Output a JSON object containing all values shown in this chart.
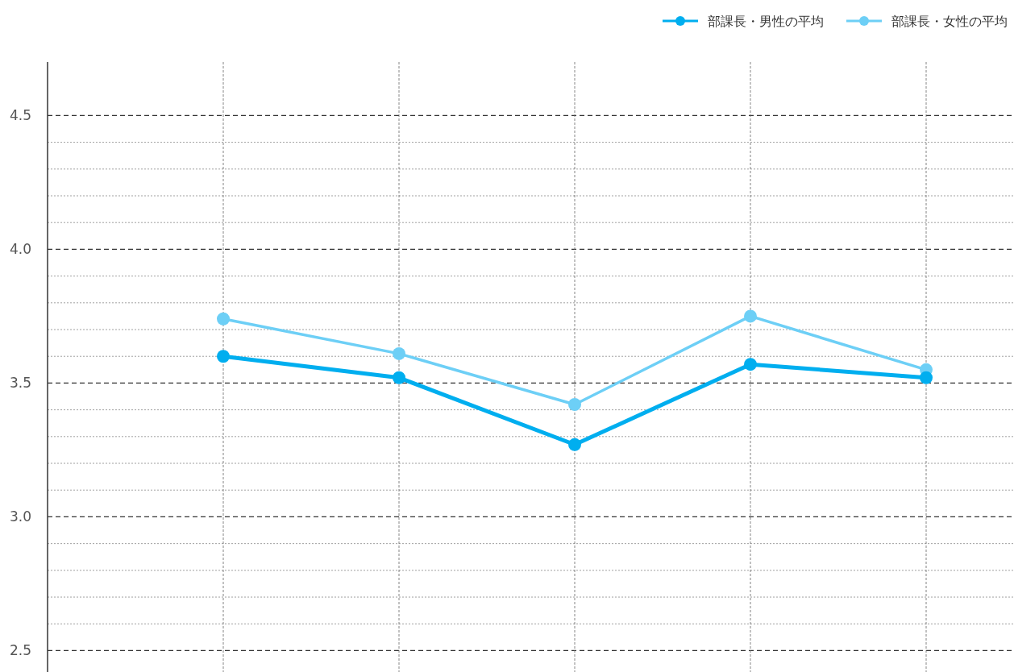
{
  "chart_data": {
    "type": "line",
    "categories": [
      null,
      null,
      null,
      null,
      null
    ],
    "series": [
      {
        "name": "部課長・男性の平均",
        "color": "#00aeef",
        "values": [
          3.6,
          3.52,
          3.27,
          3.57,
          3.52
        ]
      },
      {
        "name": "部課長・女性の平均",
        "color": "#6dcff6",
        "values": [
          3.74,
          3.61,
          3.42,
          3.75,
          3.55
        ]
      }
    ],
    "ylim": [
      2.42,
      4.7
    ],
    "yticks": [
      2.5,
      {
        "value": 2.6,
        "label": null
      },
      {
        "value": 2.7,
        "label": null
      },
      {
        "value": 2.8,
        "label": null
      },
      {
        "value": 2.9,
        "label": null
      },
      "3.0",
      {
        "value": 3.1,
        "label": null
      },
      {
        "value": 3.2,
        "label": null
      },
      {
        "value": 3.3,
        "label": null
      },
      {
        "value": 3.4,
        "label": null
      },
      3.5,
      {
        "value": 3.6,
        "label": null
      },
      {
        "value": 3.7,
        "label": null
      },
      {
        "value": 3.8,
        "label": null
      },
      {
        "value": 3.9,
        "label": null
      },
      {
        "value": 4.0,
        "label": "4.0"
      },
      {
        "value": 4.1,
        "label": null
      },
      {
        "value": 4.2,
        "label": null
      },
      {
        "value": 4.3,
        "label": null
      },
      {
        "value": 4.4,
        "label": null
      },
      4.5
    ],
    "grid": true,
    "legend": "top right",
    "marker": "circle",
    "line_style": "solid"
  }
}
